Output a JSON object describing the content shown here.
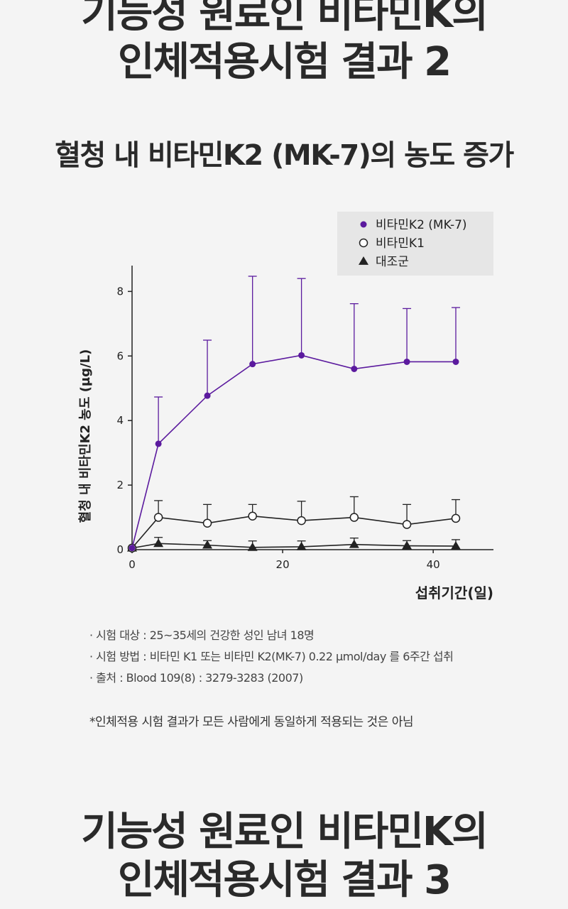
{
  "heading_top": {
    "line1": "기능성 원료인 비타민K의",
    "line2": "인체적용시험 결과 2"
  },
  "subtitle": "혈청 내 비타민K2 (MK-7)의 농도 증가",
  "chart_data": {
    "type": "line",
    "ylabel": "혈청 내 비타민K2 농도 (µg/L)",
    "xlabel": "섭취기간(일)",
    "xlim": [
      0,
      48
    ],
    "ylim": [
      0,
      8.8
    ],
    "x_ticks": [
      0,
      20,
      40
    ],
    "y_ticks": [
      0,
      2,
      4,
      6,
      8
    ],
    "legend_position": "top-right",
    "series": [
      {
        "name": "비타민K2 (MK-7)",
        "marker": "filled-circle",
        "color": "#5b1a9e",
        "x": [
          0,
          3.5,
          10,
          16,
          22.5,
          29.5,
          36.5,
          43
        ],
        "y": [
          0.05,
          3.28,
          4.77,
          5.75,
          6.02,
          5.6,
          5.82,
          5.82
        ],
        "err": [
          0,
          1.45,
          1.72,
          2.72,
          2.38,
          2.02,
          1.65,
          1.68
        ]
      },
      {
        "name": "비타민K1",
        "marker": "open-circle",
        "color": "#222222",
        "x": [
          0,
          3.5,
          10,
          16,
          22.5,
          29.5,
          36.5,
          43
        ],
        "y": [
          0.05,
          1.0,
          0.82,
          1.04,
          0.9,
          1.0,
          0.78,
          0.97
        ],
        "err": [
          0,
          0.52,
          0.58,
          0.36,
          0.6,
          0.64,
          0.62,
          0.58
        ]
      },
      {
        "name": "대조군",
        "marker": "filled-triangle",
        "color": "#222222",
        "x": [
          0,
          3.5,
          10,
          16,
          22.5,
          29.5,
          36.5,
          43
        ],
        "y": [
          0.05,
          0.19,
          0.14,
          0.07,
          0.09,
          0.16,
          0.12,
          0.11
        ],
        "err": [
          0,
          0.19,
          0.14,
          0.2,
          0.18,
          0.2,
          0.16,
          0.2
        ]
      }
    ]
  },
  "notes": [
    "· 시험 대상 : 25~35세의 건강한 성인 남녀 18명",
    "· 시험 방법 : 비타민 K1 또는 비타민 K2(MK-7) 0.22 µmol/day 를 6주간 섭취",
    "· 출처 : Blood 109(8) : 3279-3283 (2007)"
  ],
  "disclaimer": "*인체적용 시험 결과가 모든 사람에게 동일하게 적용되는 것은 아님",
  "heading_bottom": {
    "line1": "기능성 원료인 비타민K의",
    "line2": "인체적용시험 결과 3"
  }
}
